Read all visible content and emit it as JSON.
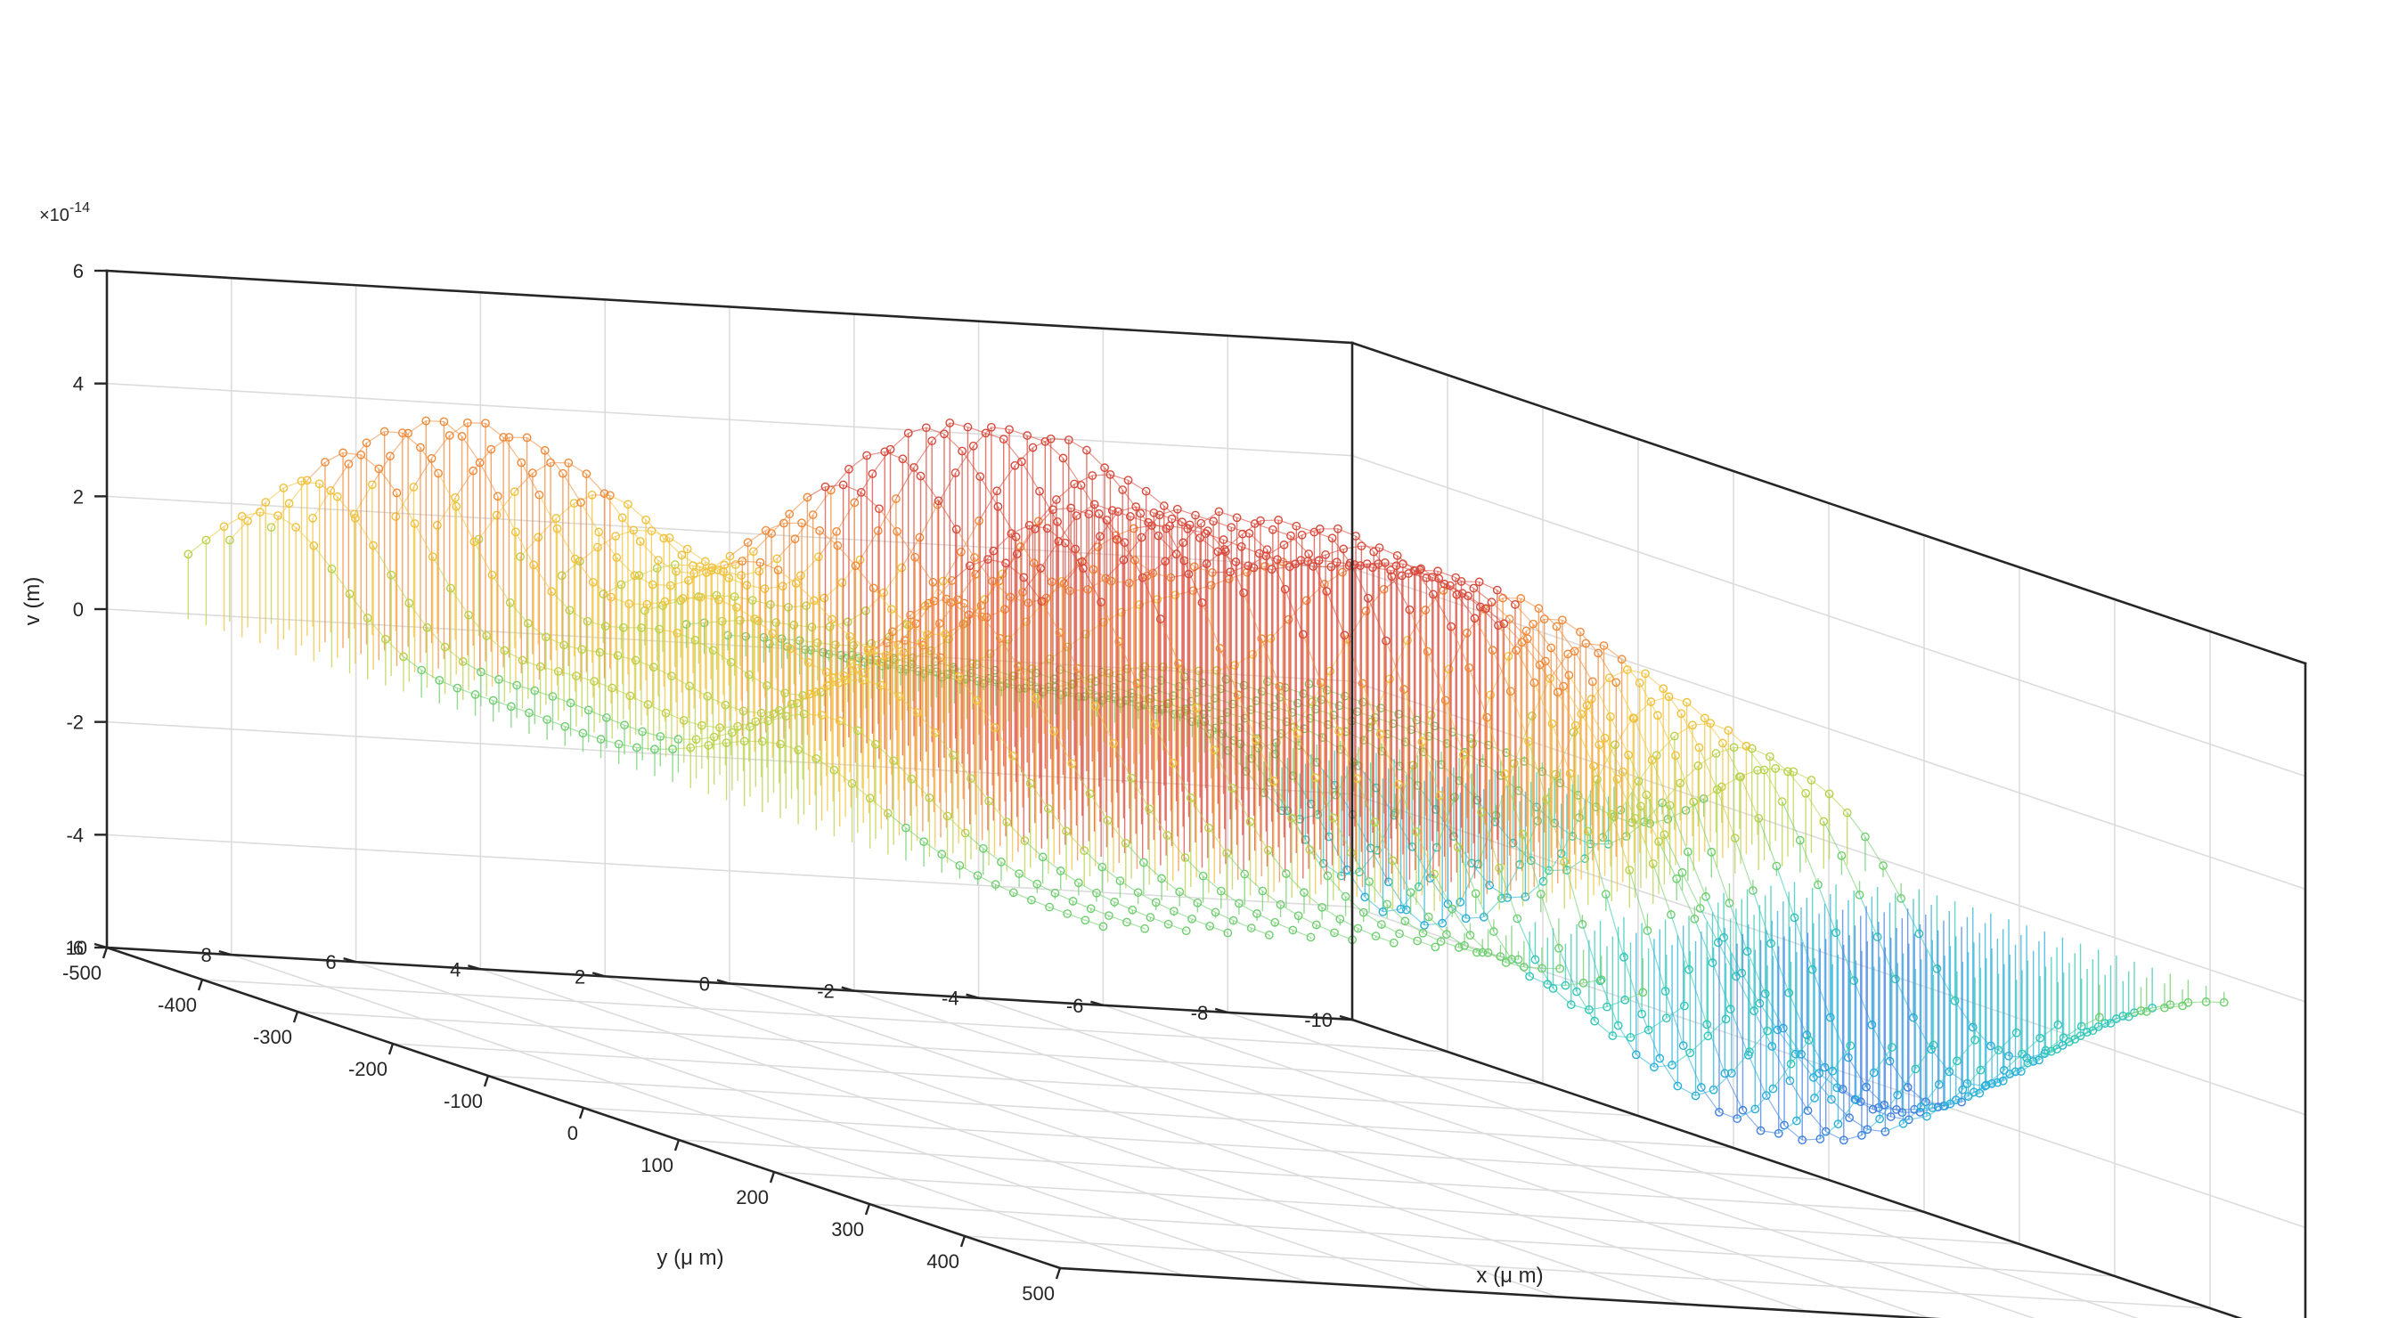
{
  "chart_data": {
    "type": "3d-stem-surface",
    "title": "",
    "xlabel": "x (μ m)",
    "ylabel": "y (μ m)",
    "zlabel": "v (m)",
    "z_exponent": "×10-14",
    "z_exponent_base": "×10",
    "z_exponent_power": "-14",
    "xlim": [
      -500,
      500
    ],
    "ylim": [
      -10,
      10
    ],
    "zlim": [
      -6,
      6
    ],
    "xticks": [
      -500,
      -400,
      -300,
      -200,
      -100,
      0,
      100,
      200,
      300,
      400,
      500
    ],
    "yticks": [
      -10,
      -8,
      -6,
      -4,
      -2,
      0,
      2,
      4,
      6,
      8,
      10
    ],
    "zticks": [
      -6,
      -4,
      -2,
      0,
      2,
      4,
      6
    ],
    "xtick_labels": [
      "-500",
      "-400",
      "-300",
      "-200",
      "-100",
      "0",
      "100",
      "200",
      "300",
      "400",
      "500"
    ],
    "ytick_labels": [
      "-10",
      "-8",
      "-6",
      "-4",
      "-2",
      "0",
      "2",
      "4",
      "6",
      "8",
      "10"
    ],
    "ztick_labels": [
      "-6",
      "-4",
      "-2",
      "0",
      "2",
      "4",
      "6"
    ],
    "grid": true,
    "surface": {
      "x_range": [
        -480,
        480
      ],
      "y_range": [
        -9,
        9
      ],
      "rows": 28,
      "points_per_row": 52,
      "features": [
        {
          "x": -390,
          "y": 6,
          "peak": 4.2,
          "sx": 75,
          "sy": 2.8
        },
        {
          "x": -140,
          "y": 1.5,
          "peak": 5.6,
          "sx": 90,
          "sy": 3.2
        },
        {
          "x": -120,
          "y": -5,
          "peak": -5.0,
          "sx": 70,
          "sy": 2.4
        },
        {
          "x": 0,
          "y": -4,
          "peak": 4.0,
          "sx": 110,
          "sy": 3.5
        },
        {
          "x": 150,
          "y": 4,
          "peak": 5.0,
          "sx": 90,
          "sy": 3.0
        },
        {
          "x": 230,
          "y": -2,
          "peak": 4.2,
          "sx": 110,
          "sy": 4.0
        },
        {
          "x": 240,
          "y": -6.5,
          "peak": -5.3,
          "sx": 80,
          "sy": 2.6
        },
        {
          "x": 380,
          "y": -3,
          "peak": -4.5,
          "sx": 70,
          "sy": 3.0
        }
      ]
    },
    "colormap": [
      "#5b4fd6",
      "#3f7fe0",
      "#2ab0d8",
      "#31c7b6",
      "#6fce6e",
      "#b8d24a",
      "#f0c23a",
      "#f08a3a",
      "#d84a3c"
    ]
  }
}
